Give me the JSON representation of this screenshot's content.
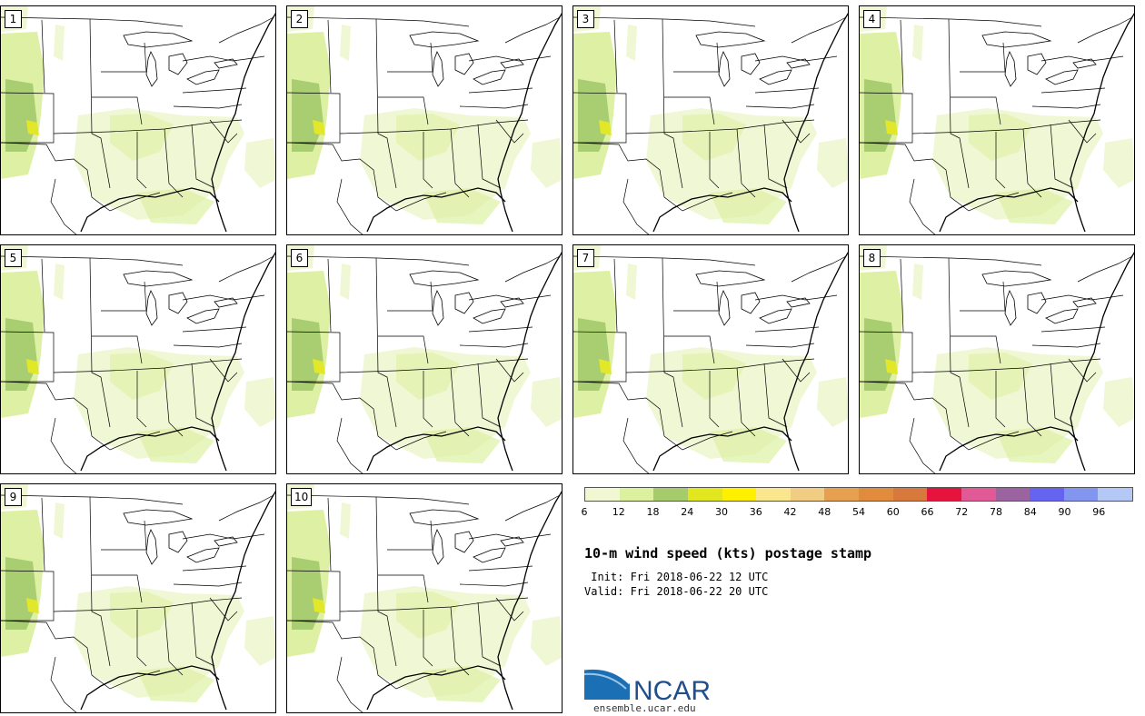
{
  "product": {
    "title": "10-m wind speed (kts) postage stamp",
    "init": " Init: Fri 2018-06-22 12 UTC",
    "valid": "Valid: Fri 2018-06-22 20 UTC"
  },
  "members": [
    "1",
    "2",
    "3",
    "4",
    "5",
    "6",
    "7",
    "8",
    "9",
    "10"
  ],
  "colorbar": {
    "ticks": [
      "6",
      "12",
      "18",
      "24",
      "30",
      "36",
      "42",
      "48",
      "54",
      "60",
      "66",
      "72",
      "78",
      "84",
      "90",
      "96"
    ],
    "colors": [
      "#f0f7d2",
      "#dcf0a0",
      "#a5cb6a",
      "#e1e61e",
      "#fff000",
      "#fae68c",
      "#f0cd82",
      "#e6a050",
      "#e18c3c",
      "#d7783c",
      "#e6143c",
      "#e15a96",
      "#9b64a0",
      "#6464f0",
      "#8296f0",
      "#b4c8f5"
    ]
  },
  "logo": {
    "name": "NCAR",
    "url": "ensemble.ucar.edu"
  }
}
